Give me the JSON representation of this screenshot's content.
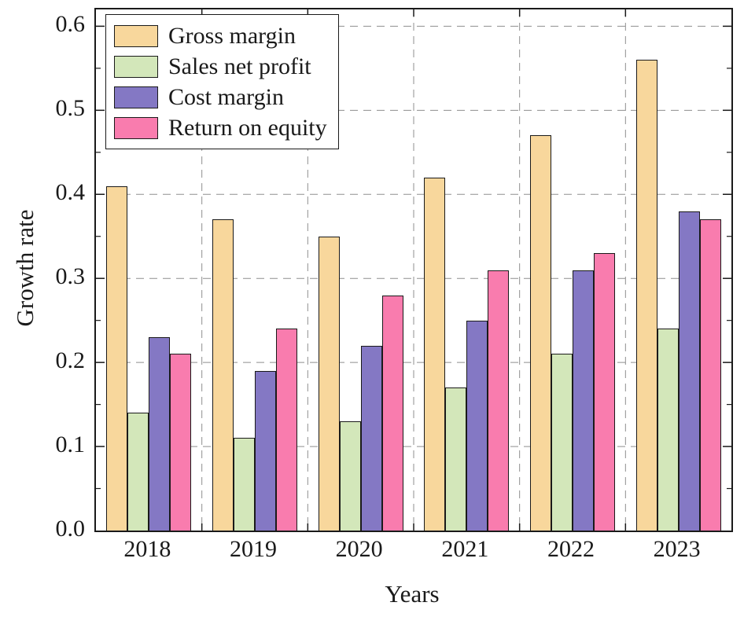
{
  "chart_data": {
    "type": "bar",
    "title": "",
    "xlabel": "Years",
    "ylabel": "Growth rate",
    "categories": [
      "2018",
      "2019",
      "2020",
      "2021",
      "2022",
      "2023"
    ],
    "series": [
      {
        "name": "Gross margin",
        "color": "#F8D79C",
        "values": [
          0.41,
          0.37,
          0.35,
          0.42,
          0.47,
          0.56
        ]
      },
      {
        "name": "Sales net profit",
        "color": "#D3E7BA",
        "values": [
          0.14,
          0.11,
          0.13,
          0.17,
          0.21,
          0.24
        ]
      },
      {
        "name": "Cost margin",
        "color": "#8478C4",
        "values": [
          0.23,
          0.19,
          0.22,
          0.25,
          0.31,
          0.38
        ]
      },
      {
        "name": "Return on equity",
        "color": "#F97CAE",
        "values": [
          0.21,
          0.24,
          0.28,
          0.31,
          0.33,
          0.37
        ]
      }
    ],
    "ylim": [
      0,
      0.62
    ],
    "yticks": [
      0.0,
      0.1,
      0.2,
      0.3,
      0.4,
      0.5,
      0.6
    ],
    "ytick_labels": [
      "0.0",
      "0.1",
      "0.2",
      "0.3",
      "0.4",
      "0.5",
      "0.6"
    ],
    "grid": true,
    "grid_color": "#8f8f8f",
    "axis_color": "#1a1a1a",
    "legend_position": "top-left"
  }
}
